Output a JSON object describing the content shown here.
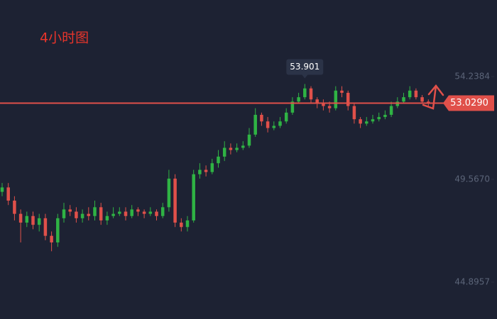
{
  "chart_data": {
    "type": "candlestick",
    "title": "4小时图",
    "ylim": [
      43.22,
      57.718
    ],
    "yticks": [
      54.2384,
      {
        "value": 49.567,
        "label": "49.5670"
      },
      44.8957
    ],
    "up_color": "#2fb344",
    "down_color": "#e0504a",
    "last_price": {
      "value": 53.029,
      "label": "53.0290"
    },
    "candles": {
      "open": [
        49.0,
        49.2,
        48.6,
        48.0,
        47.6,
        47.9,
        47.5,
        47.8,
        47.0,
        46.7,
        47.8,
        48.2,
        48.1,
        47.8,
        48.0,
        47.9,
        48.3,
        47.7,
        47.9,
        48.0,
        48.1,
        47.9,
        48.2,
        48.1,
        48.0,
        48.1,
        47.9,
        48.3,
        49.6,
        47.6,
        47.4,
        47.7,
        49.8,
        50.0,
        49.9,
        50.3,
        50.6,
        51.0,
        50.9,
        51.0,
        51.1,
        51.6,
        52.5,
        52.2,
        51.9,
        52.0,
        52.2,
        52.6,
        53.1,
        53.3,
        53.7,
        53.2,
        53.0,
        52.9,
        52.8,
        53.6,
        53.5,
        52.9,
        52.3,
        52.1,
        52.2,
        52.3,
        52.4,
        52.5,
        52.9,
        53.1,
        53.3,
        53.6,
        53.3,
        53.1
      ],
      "high": [
        49.4,
        49.4,
        48.8,
        48.2,
        48.1,
        48.1,
        48.0,
        48.0,
        47.2,
        48.0,
        48.5,
        48.4,
        48.3,
        48.2,
        48.3,
        48.6,
        48.5,
        48.1,
        48.3,
        48.3,
        48.3,
        48.4,
        48.3,
        48.2,
        48.3,
        48.2,
        48.5,
        50.0,
        49.8,
        47.8,
        47.9,
        50.0,
        50.3,
        50.2,
        50.5,
        50.9,
        51.3,
        51.2,
        51.2,
        51.3,
        51.9,
        52.8,
        52.6,
        52.4,
        52.2,
        52.4,
        52.8,
        53.3,
        53.5,
        53.901,
        53.8,
        53.3,
        53.2,
        53.1,
        53.8,
        53.8,
        53.6,
        53.0,
        52.4,
        52.4,
        52.5,
        52.6,
        52.7,
        53.1,
        53.3,
        53.5,
        53.8,
        53.7,
        53.4,
        53.2
      ],
      "low": [
        48.8,
        48.4,
        47.7,
        46.7,
        47.4,
        47.3,
        47.2,
        46.8,
        46.3,
        46.5,
        47.6,
        47.9,
        47.6,
        47.6,
        47.7,
        47.7,
        47.5,
        47.5,
        47.8,
        47.9,
        47.7,
        47.8,
        47.9,
        47.8,
        47.9,
        47.7,
        47.8,
        48.1,
        47.4,
        47.2,
        47.2,
        47.6,
        49.6,
        49.7,
        49.8,
        50.1,
        50.4,
        50.7,
        50.8,
        50.9,
        51.0,
        51.5,
        52.0,
        51.7,
        51.8,
        51.9,
        52.1,
        52.5,
        53.0,
        53.2,
        53.0,
        52.8,
        52.7,
        52.6,
        52.7,
        53.3,
        52.7,
        52.1,
        51.9,
        52.0,
        52.1,
        52.2,
        52.3,
        52.4,
        52.8,
        53.0,
        53.2,
        53.2,
        53.0,
        52.9
      ],
      "close": [
        49.2,
        48.6,
        48.0,
        47.6,
        47.9,
        47.5,
        47.8,
        47.0,
        46.7,
        47.8,
        48.2,
        48.1,
        47.8,
        48.0,
        47.9,
        48.3,
        47.7,
        47.9,
        48.0,
        48.1,
        47.9,
        48.2,
        48.1,
        48.0,
        48.1,
        47.9,
        48.3,
        49.6,
        47.6,
        47.4,
        47.7,
        49.8,
        50.0,
        49.9,
        50.3,
        50.6,
        51.0,
        50.9,
        51.0,
        51.1,
        51.6,
        52.5,
        52.2,
        51.9,
        52.0,
        52.2,
        52.6,
        53.1,
        53.3,
        53.7,
        53.2,
        53.0,
        52.9,
        52.8,
        53.6,
        53.5,
        52.9,
        52.3,
        52.1,
        52.2,
        52.3,
        52.4,
        52.5,
        52.9,
        53.1,
        53.3,
        53.6,
        53.3,
        53.1,
        53.03
      ]
    }
  }
}
